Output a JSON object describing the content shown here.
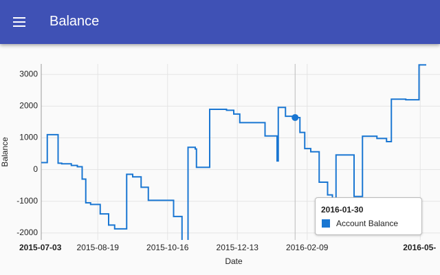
{
  "app_bar": {
    "title": "Balance"
  },
  "chart_data": {
    "type": "line",
    "step": "after",
    "x_label": "Date",
    "y_label": "Balance",
    "x": [
      "2015-07-03",
      "2015-07-08",
      "2015-07-17",
      "2015-07-20",
      "2015-07-28",
      "2015-08-02",
      "2015-08-06",
      "2015-08-09",
      "2015-08-13",
      "2015-08-21",
      "2015-08-28",
      "2015-09-02",
      "2015-09-12",
      "2015-09-17",
      "2015-09-24",
      "2015-09-30",
      "2015-10-21",
      "2015-10-28",
      "2015-11-02",
      "2015-11-08",
      "2015-11-09",
      "2015-11-20",
      "2015-12-04",
      "2015-12-10",
      "2015-12-15",
      "2016-01-05",
      "2016-01-15",
      "2016-01-16",
      "2016-01-22",
      "2016-01-30",
      "2016-02-03",
      "2016-02-07",
      "2016-02-12",
      "2016-02-19",
      "2016-02-26",
      "2016-03-01",
      "2016-03-04",
      "2016-03-19",
      "2016-03-26",
      "2016-04-07",
      "2016-04-15",
      "2016-04-19",
      "2016-05-01",
      "2016-05-12",
      "2016-05-18"
    ],
    "series": [
      {
        "name": "Account Balance",
        "color": "#1976d2",
        "values": [
          220,
          1100,
          200,
          180,
          130,
          90,
          -300,
          -1050,
          -1100,
          -1400,
          -1750,
          -1870,
          -150,
          -230,
          -560,
          -970,
          -1480,
          -2250,
          700,
          650,
          70,
          1900,
          1870,
          1750,
          1480,
          1060,
          270,
          1960,
          1680,
          1640,
          1170,
          660,
          560,
          -400,
          -800,
          -1000,
          460,
          -850,
          1050,
          980,
          880,
          2220,
          2200,
          3300,
          3300
        ]
      }
    ],
    "xlim": [
      "2015-07-03",
      "2016-05-18"
    ],
    "xticks": [
      "2015-07-03",
      "2015-08-19",
      "2015-10-16",
      "2015-12-13",
      "2016-02-09",
      {
        "value": "2016-05-13",
        "label": "2016-05-"
      }
    ],
    "ylim": [
      -2220,
      3330
    ],
    "yticks": [
      -2000,
      -1000,
      0,
      1000,
      2000,
      3000
    ],
    "grid": true,
    "tooltip_index": 29
  }
}
